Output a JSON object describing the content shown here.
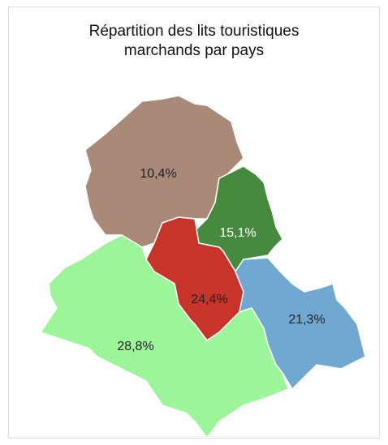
{
  "title": "Répartition des lits touristiques marchands par pays",
  "regions": [
    {
      "label": "10,4%",
      "color": "#a98a78",
      "label_color": "#222222"
    },
    {
      "label": "15,1%",
      "color": "#468a3e",
      "label_color": "#ffffff"
    },
    {
      "label": "24,4%",
      "color": "#c8342a",
      "label_color": "#222222"
    },
    {
      "label": "21,3%",
      "color": "#6fa9d2",
      "label_color": "#222222"
    },
    {
      "label": "28,8%",
      "color": "#9df59a",
      "label_color": "#222222"
    }
  ]
}
